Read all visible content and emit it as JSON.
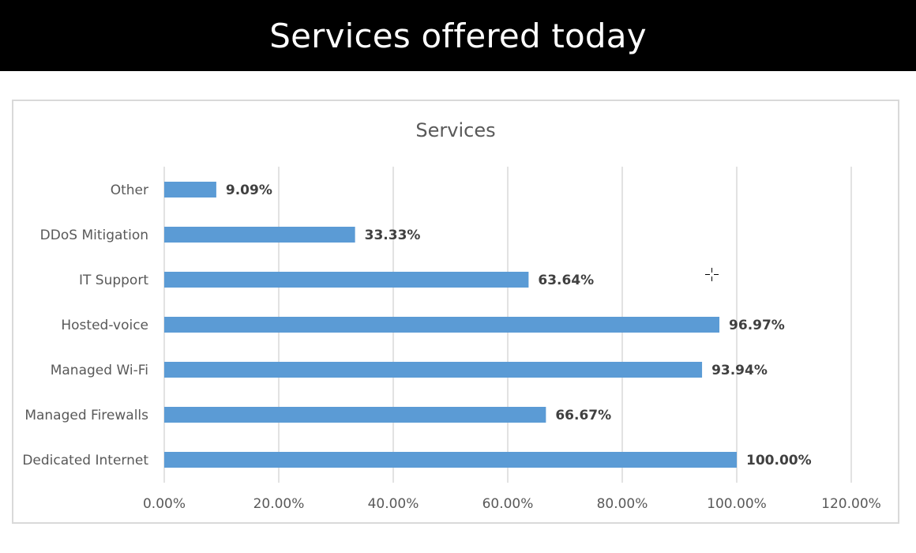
{
  "page": {
    "banner_title": "Services offered today"
  },
  "chart_data": {
    "type": "bar",
    "orientation": "horizontal",
    "title": "Services",
    "xlabel": "",
    "ylabel": "",
    "categories": [
      "Other",
      "DDoS Mitigation",
      "IT Support",
      "Hosted-voice",
      "Managed Wi-Fi",
      "Managed Firewalls",
      "Dedicated Internet"
    ],
    "values": [
      9.09,
      33.33,
      63.64,
      96.97,
      93.94,
      66.67,
      100.0
    ],
    "data_labels": [
      "9.09%",
      "33.33%",
      "63.64%",
      "96.97%",
      "93.94%",
      "66.67%",
      "100.00%"
    ],
    "xlim": [
      0,
      120
    ],
    "x_ticks": [
      0,
      20,
      40,
      60,
      80,
      100,
      120
    ],
    "x_tick_labels": [
      "0.00%",
      "20.00%",
      "40.00%",
      "60.00%",
      "80.00%",
      "100.00%",
      "120.00%"
    ],
    "grid": true,
    "legend": "none",
    "bar_color": "#5b9bd5",
    "grid_color": "#d9d9d9",
    "label_color": "#404040",
    "tick_color": "#595959"
  },
  "colors": {
    "banner_bg": "#000000",
    "banner_text": "#ffffff",
    "frame_border": "#d9d9d9"
  },
  "icons": {
    "cursor": "crosshair-cursor-icon"
  }
}
